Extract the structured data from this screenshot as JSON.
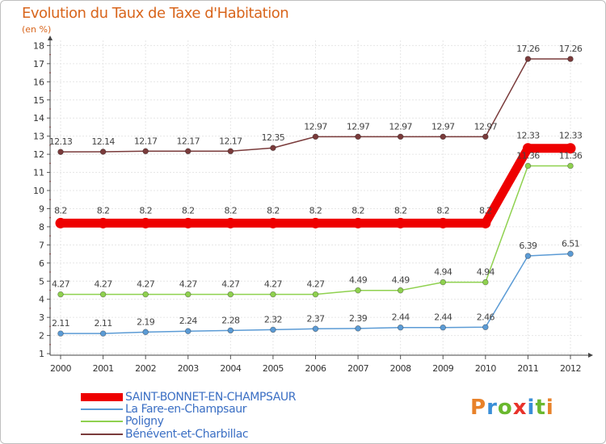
{
  "title": "Evolution du Taux de Taxe d'Habitation",
  "subtitle": "(en %)",
  "logo": {
    "text": "Proxiti",
    "colors": [
      "#e8822a",
      "#3a8fd8",
      "#6ab82e",
      "#e8322a",
      "#3a8fd8",
      "#6ab82e",
      "#e8822a"
    ]
  },
  "chart_data": {
    "type": "line",
    "title": "Evolution du Taux de Taxe d'Habitation",
    "ylabel": "(en %)",
    "xlabel": "",
    "categories": [
      "2000",
      "2001",
      "2002",
      "2003",
      "2004",
      "2005",
      "2006",
      "2007",
      "2008",
      "2009",
      "2010",
      "2011",
      "2012"
    ],
    "ylim": [
      1,
      18
    ],
    "yticks": [
      "1",
      "2",
      "3",
      "4",
      "5",
      "6",
      "7",
      "8",
      "9",
      "10",
      "11",
      "12",
      "13",
      "14",
      "15",
      "16",
      "17",
      "18"
    ],
    "legend_position": "bottom-left",
    "series": [
      {
        "name": "SAINT-BONNET-EN-CHAMPSAUR",
        "color": "#ee0000",
        "emphasis": "thick",
        "values": [
          8.2,
          8.2,
          8.2,
          8.2,
          8.2,
          8.2,
          8.2,
          8.2,
          8.2,
          8.2,
          8.2,
          12.33,
          12.33
        ],
        "labels": [
          "8.2",
          "8.2",
          "8.2",
          "8.2",
          "8.2",
          "8.2",
          "8.2",
          "8.2",
          "8.2",
          "8.2",
          "8.2",
          "12.33",
          "12.33"
        ]
      },
      {
        "name": "La Fare-en-Champsaur",
        "color": "#5b9bd5",
        "emphasis": "normal",
        "values": [
          2.11,
          2.11,
          2.19,
          2.24,
          2.28,
          2.32,
          2.37,
          2.39,
          2.44,
          2.44,
          2.46,
          6.39,
          6.51
        ],
        "labels": [
          "2.11",
          "2.11",
          "2.19",
          "2.24",
          "2.28",
          "2.32",
          "2.37",
          "2.39",
          "2.44",
          "2.44",
          "2.46",
          "6.39",
          "6.51"
        ]
      },
      {
        "name": "Poligny",
        "color": "#8fd14f",
        "emphasis": "normal",
        "values": [
          4.27,
          4.27,
          4.27,
          4.27,
          4.27,
          4.27,
          4.27,
          4.49,
          4.49,
          4.94,
          4.94,
          11.36,
          11.36
        ],
        "labels": [
          "4.27",
          "4.27",
          "4.27",
          "4.27",
          "4.27",
          "4.27",
          "4.27",
          "4.49",
          "4.49",
          "4.94",
          "4.94",
          "11.36",
          "11.36"
        ]
      },
      {
        "name": "Bénévent-et-Charbillac",
        "color": "#7a3b3b",
        "emphasis": "normal",
        "values": [
          12.13,
          12.14,
          12.17,
          12.17,
          12.17,
          12.35,
          12.97,
          12.97,
          12.97,
          12.97,
          12.97,
          17.26,
          17.26
        ],
        "labels": [
          "12.13",
          "12.14",
          "12.17",
          "12.17",
          "12.17",
          "12.35",
          "12.97",
          "12.97",
          "12.97",
          "12.97",
          "12.97",
          "17.26",
          "17.26"
        ]
      }
    ]
  }
}
